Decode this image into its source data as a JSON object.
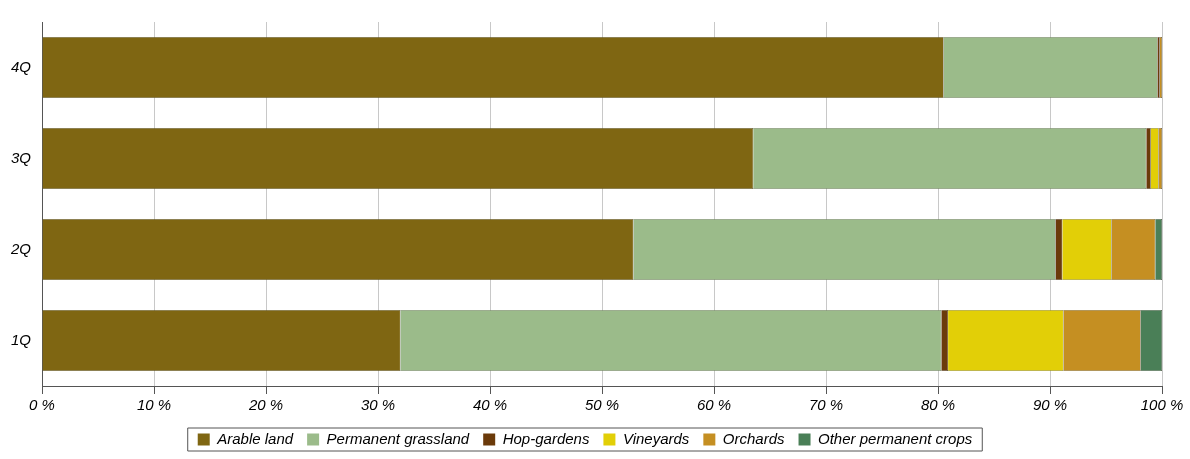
{
  "chart_data": {
    "type": "bar",
    "orientation": "horizontal",
    "stacked": true,
    "categories": [
      "4Q",
      "3Q",
      "2Q",
      "1Q"
    ],
    "series": [
      {
        "name": "Arable land",
        "color": "#7f6612",
        "values": [
          80.5,
          63.5,
          52.8,
          32.0
        ]
      },
      {
        "name": "Permanent grassland",
        "color": "#9bbb8a",
        "values": [
          19.1,
          35.1,
          37.7,
          48.3
        ]
      },
      {
        "name": "Hop-gardens",
        "color": "#6b3a0a",
        "values": [
          0.2,
          0.4,
          0.6,
          0.6
        ]
      },
      {
        "name": "Vineyards",
        "color": "#e2cf07",
        "values": [
          0,
          0.7,
          4.4,
          10.3
        ]
      },
      {
        "name": "Orchards",
        "color": "#c58f22",
        "values": [
          0.2,
          0.3,
          3.9,
          6.9
        ]
      },
      {
        "name": "Other permanent crops",
        "color": "#4a7f57",
        "values": [
          0,
          0,
          0.6,
          1.9
        ]
      }
    ],
    "xlim": [
      0,
      100
    ],
    "xticks": [
      {
        "value": 0,
        "label": "0 %"
      },
      {
        "value": 10,
        "label": "10 %"
      },
      {
        "value": 20,
        "label": "20 %"
      },
      {
        "value": 30,
        "label": "30 %"
      },
      {
        "value": 40,
        "label": "40 %"
      },
      {
        "value": 50,
        "label": "50 %"
      },
      {
        "value": 60,
        "label": "60 %"
      },
      {
        "value": 70,
        "label": "70 %"
      },
      {
        "value": 80,
        "label": "80 %"
      },
      {
        "value": 90,
        "label": "90 %"
      },
      {
        "value": 100,
        "label": "100 %"
      }
    ],
    "grid": "x",
    "legend": "bottom"
  }
}
